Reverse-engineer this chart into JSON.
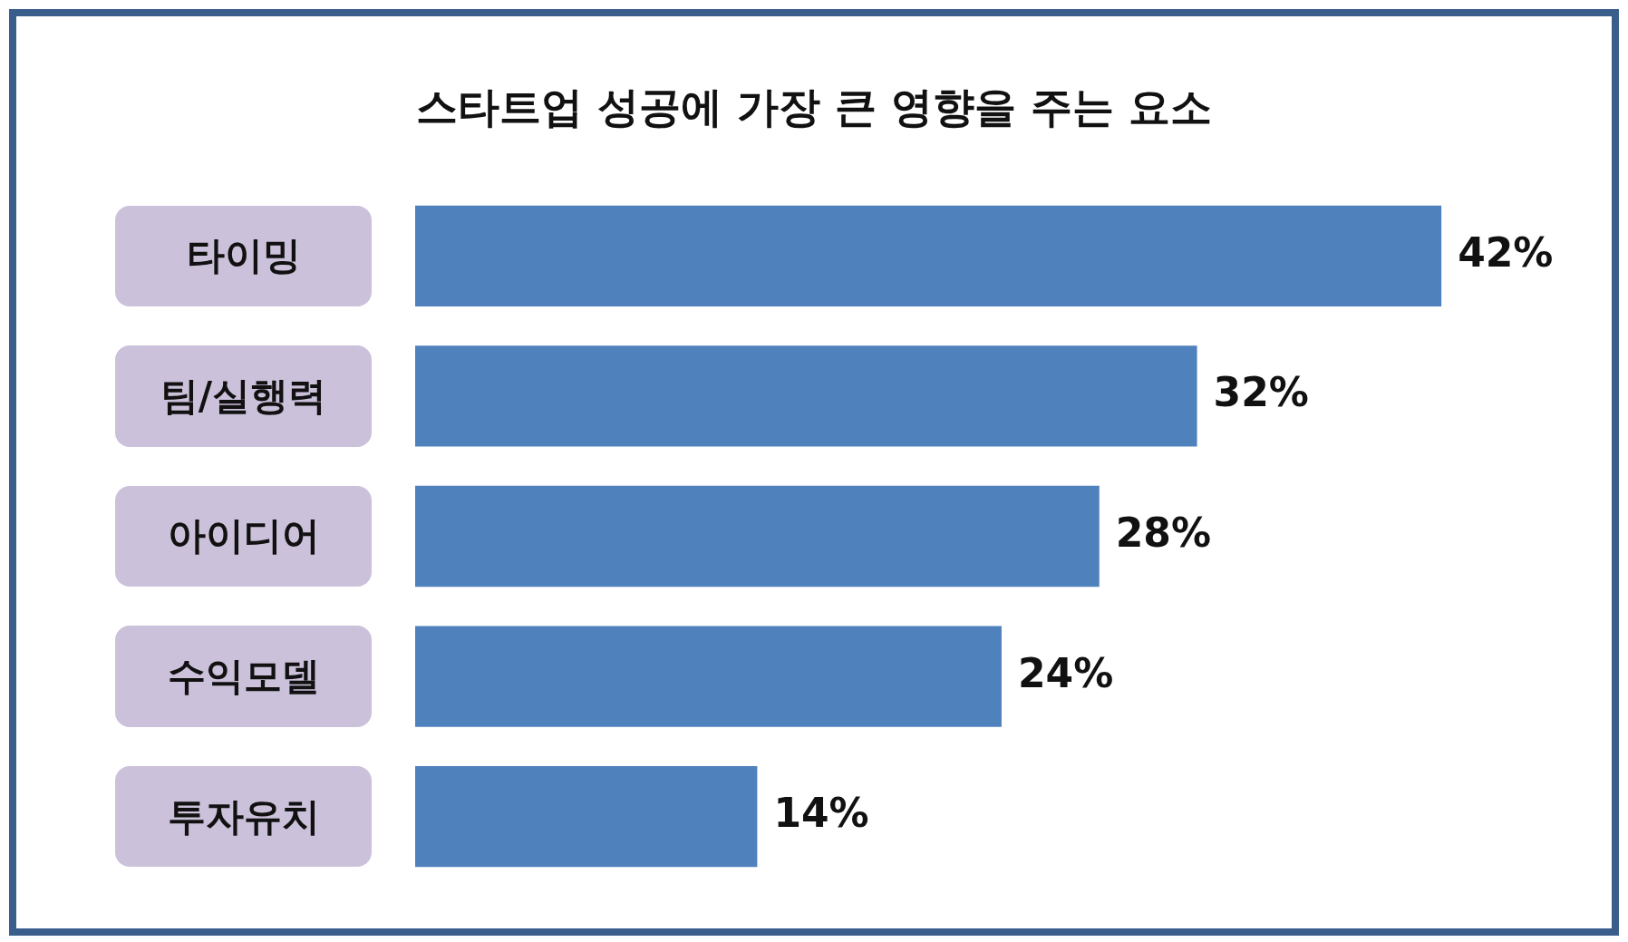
{
  "chart_data": {
    "type": "bar",
    "orientation": "horizontal",
    "title": "스타트업 성공에 가장 큰 영향을 주는 요소",
    "categories": [
      "타이밍",
      "팀/실행력",
      "아이디어",
      "수익모델",
      "투자유치"
    ],
    "values": [
      42,
      32,
      28,
      24,
      14
    ],
    "value_labels": [
      "42%",
      "32%",
      "28%",
      "24%",
      "14%"
    ],
    "color": "#4f81bd"
  }
}
